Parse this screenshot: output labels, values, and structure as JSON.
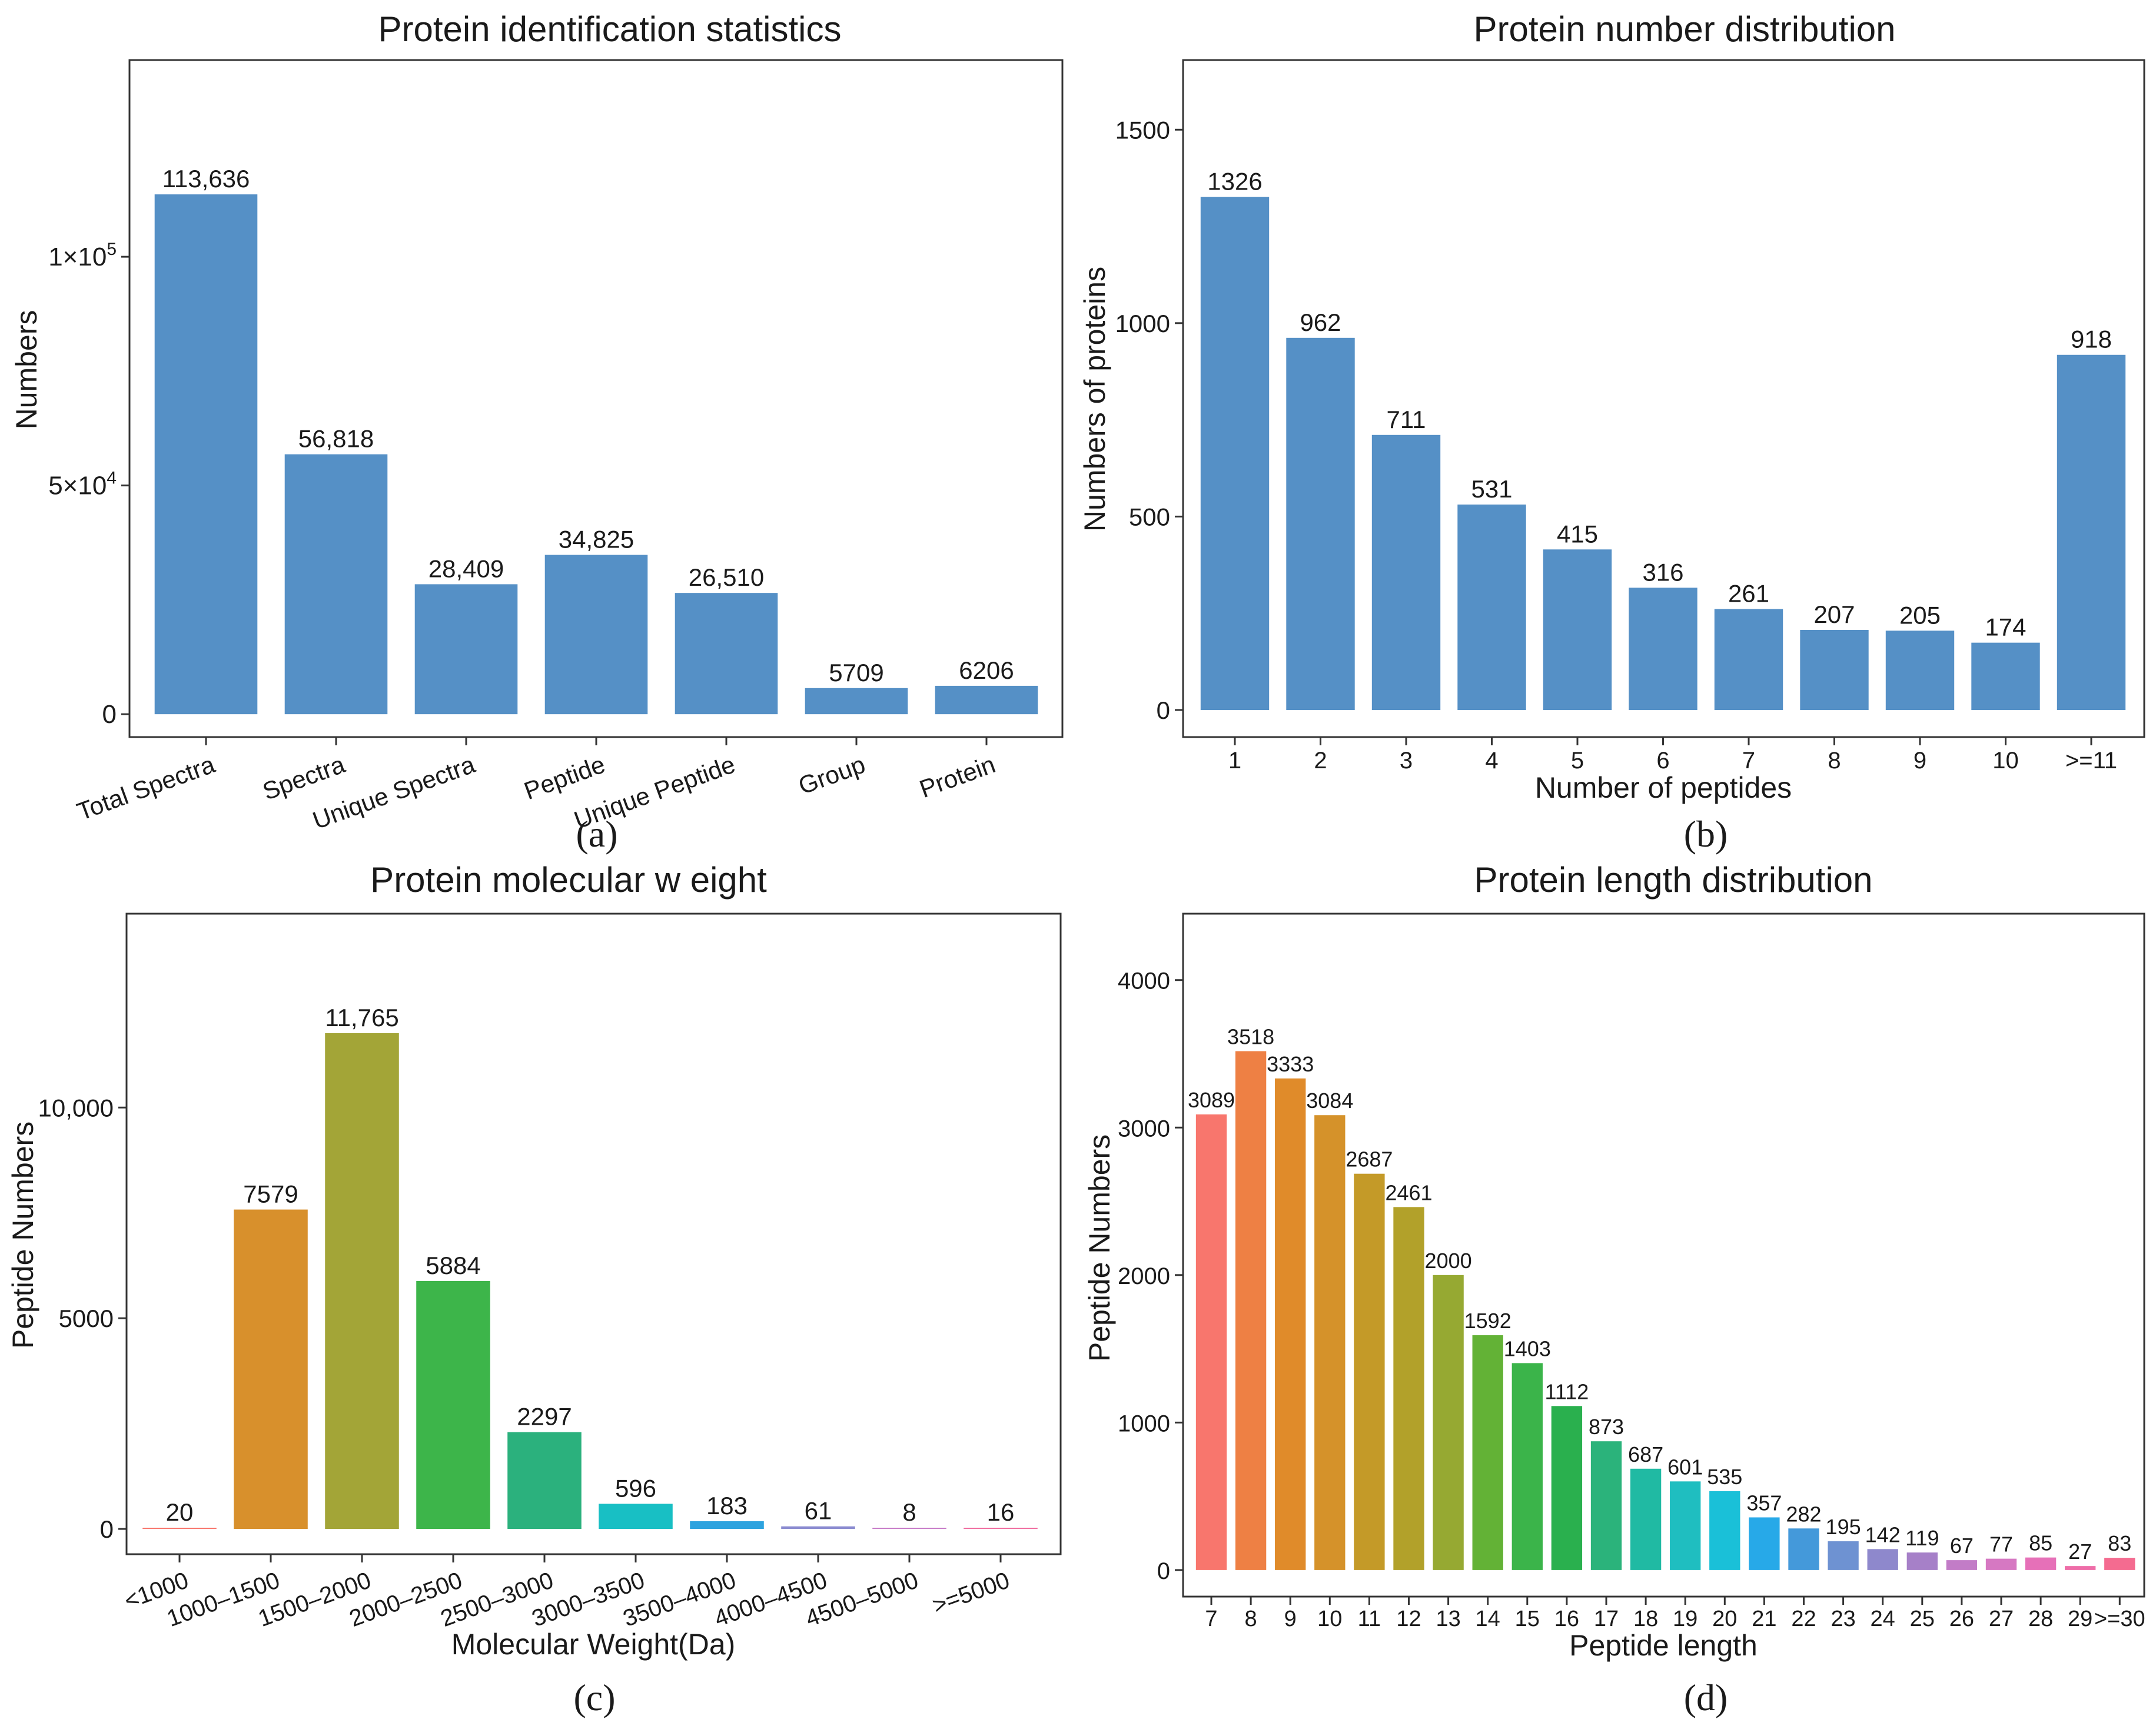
{
  "chart_data": [
    {
      "id": "a",
      "type": "bar",
      "title": "Protein identification statistics",
      "panel_label": "(a)",
      "xlabel": "",
      "ylabel": "Numbers",
      "categories": [
        "Total Spectra",
        "Spectra",
        "Unique Spectra",
        "Peptide",
        "Unique Peptide",
        "Group",
        "Protein"
      ],
      "values": [
        113636,
        56818,
        28409,
        34825,
        26510,
        5709,
        6206
      ],
      "value_labels": [
        "113,636",
        "56,818",
        "28,409",
        "34,825",
        "26,510",
        "5709",
        "6206"
      ],
      "ylim": [
        -5000,
        143000
      ],
      "yticks": [
        0,
        50000,
        100000
      ],
      "ytick_labels": [
        {
          "base": "0",
          "exp": ""
        },
        {
          "base": "5×10",
          "exp": "4"
        },
        {
          "base": "1×10",
          "exp": "5"
        }
      ],
      "color": "#5590C6",
      "rotate_xticks": true
    },
    {
      "id": "b",
      "type": "bar",
      "title": "Protein number distribution",
      "panel_label": "(b)",
      "xlabel": "Number of peptides",
      "ylabel": "Numbers of proteins",
      "categories": [
        "1",
        "2",
        "3",
        "4",
        "5",
        "6",
        "7",
        "8",
        "9",
        "10",
        ">=11"
      ],
      "values": [
        1326,
        962,
        711,
        531,
        415,
        316,
        261,
        207,
        205,
        174,
        918
      ],
      "value_labels": [
        "1326",
        "962",
        "711",
        "531",
        "415",
        "316",
        "261",
        "207",
        "205",
        "174",
        "918"
      ],
      "ylim": [
        -70,
        1680
      ],
      "yticks": [
        0,
        500,
        1000,
        1500
      ],
      "ytick_labels": [
        {
          "base": "0"
        },
        {
          "base": "500"
        },
        {
          "base": "1000"
        },
        {
          "base": "1500"
        }
      ],
      "color": "#5590C6",
      "rotate_xticks": false
    },
    {
      "id": "c",
      "type": "bar",
      "title": "Protein molecular w eight",
      "panel_label": "(c)",
      "xlabel": "Molecular Weight(Da)",
      "ylabel": "Peptide Numbers",
      "categories": [
        "<1000",
        "1000–1500",
        "1500–2000",
        "2000–2500",
        "2500–3000",
        "3000–3500",
        "3500–4000",
        "4000–4500",
        "4500–5000",
        ">=5000"
      ],
      "values": [
        20,
        7579,
        11765,
        5884,
        2297,
        596,
        183,
        61,
        8,
        16
      ],
      "value_labels": [
        "20",
        "7579",
        "11,765",
        "5884",
        "2297",
        "596",
        "183",
        "61",
        "8",
        "16"
      ],
      "ylim": [
        -600,
        14600
      ],
      "yticks": [
        0,
        5000,
        10000
      ],
      "ytick_labels": [
        {
          "base": "0"
        },
        {
          "base": "5000"
        },
        {
          "base": "10,000"
        }
      ],
      "colors": [
        "#F8766D",
        "#D8902C",
        "#A3A537",
        "#3DB54A",
        "#2BB17D",
        "#18BFC4",
        "#2DA3DF",
        "#8A8BD0",
        "#C77CC8",
        "#F06EA0"
      ],
      "rotate_xticks": true
    },
    {
      "id": "d",
      "type": "bar",
      "title": "Protein length distribution",
      "panel_label": "(d)",
      "xlabel": "Peptide length",
      "ylabel": "Peptide Numbers",
      "categories": [
        "7",
        "8",
        "9",
        "10",
        "11",
        "12",
        "13",
        "14",
        "15",
        "16",
        "17",
        "18",
        "19",
        "20",
        "21",
        "22",
        "23",
        "24",
        "25",
        "26",
        "27",
        "28",
        "29",
        ">=30"
      ],
      "values": [
        3089,
        3518,
        3333,
        3084,
        2687,
        2461,
        2000,
        1592,
        1403,
        1112,
        873,
        687,
        601,
        535,
        357,
        282,
        195,
        142,
        119,
        67,
        77,
        85,
        27,
        83
      ],
      "value_labels": [
        "3089",
        "3518",
        "3333",
        "3084",
        "2687",
        "2461",
        "2000",
        "1592",
        "1403",
        "1112",
        "873",
        "687",
        "601",
        "535",
        "357",
        "282",
        "195",
        "142",
        "119",
        "67",
        "77",
        "85",
        "27",
        "83"
      ],
      "ylim": [
        -180,
        4450
      ],
      "yticks": [
        0,
        1000,
        2000,
        3000,
        4000
      ],
      "ytick_labels": [
        {
          "base": "0"
        },
        {
          "base": "1000"
        },
        {
          "base": "2000"
        },
        {
          "base": "3000"
        },
        {
          "base": "4000"
        }
      ],
      "colors": [
        "#F8766D",
        "#EE8044",
        "#E08B2A",
        "#D5922A",
        "#C49A28",
        "#B2A12A",
        "#96A932",
        "#63B236",
        "#3BB44A",
        "#2AB04E",
        "#2BB37B",
        "#20BAA3",
        "#1FBEC0",
        "#1AC0D8",
        "#27A9E8",
        "#4499DA",
        "#6E92D2",
        "#8E88CC",
        "#A680C8",
        "#C27CC7",
        "#D678C2",
        "#E670B8",
        "#EE6DA8",
        "#F46B90"
      ],
      "rotate_xticks": false
    }
  ]
}
